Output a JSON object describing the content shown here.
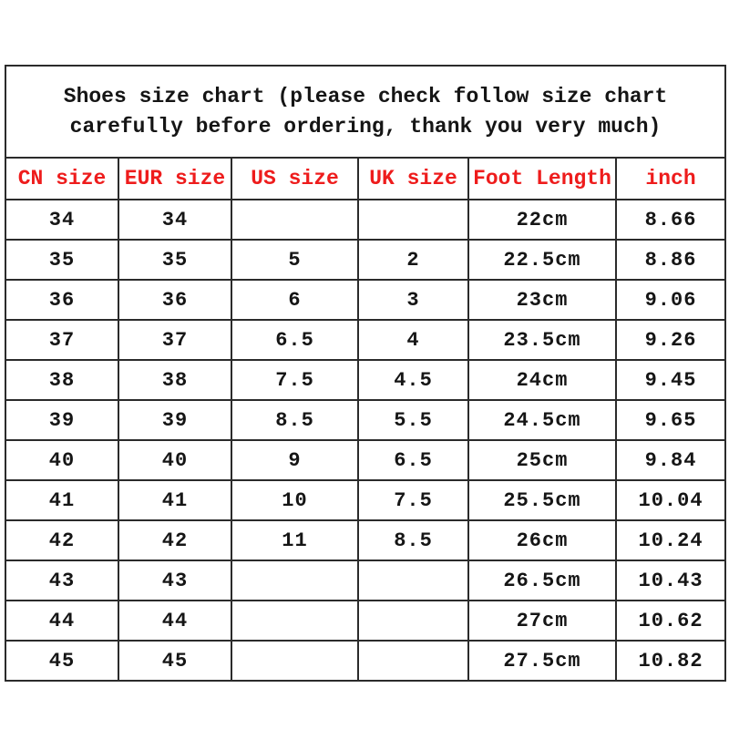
{
  "colors": {
    "header_text_red": "#ee1c1c",
    "body_text": "#151515",
    "grid_border": "#2b2b2b",
    "background": "#ffffff"
  },
  "title": {
    "line1": "Shoes size chart (please check follow size chart",
    "line2": "carefully before ordering, thank you very much)"
  },
  "table": {
    "columns": [
      "CN size",
      "EUR size",
      "US size",
      "UK size",
      "Foot Length",
      "inch"
    ],
    "rows": [
      [
        "34",
        "34",
        "",
        "",
        "22cm",
        "8.66"
      ],
      [
        "35",
        "35",
        "5",
        "2",
        "22.5cm",
        "8.86"
      ],
      [
        "36",
        "36",
        "6",
        "3",
        "23cm",
        "9.06"
      ],
      [
        "37",
        "37",
        "6.5",
        "4",
        "23.5cm",
        "9.26"
      ],
      [
        "38",
        "38",
        "7.5",
        "4.5",
        "24cm",
        "9.45"
      ],
      [
        "39",
        "39",
        "8.5",
        "5.5",
        "24.5cm",
        "9.65"
      ],
      [
        "40",
        "40",
        "9",
        "6.5",
        "25cm",
        "9.84"
      ],
      [
        "41",
        "41",
        "10",
        "7.5",
        "25.5cm",
        "10.04"
      ],
      [
        "42",
        "42",
        "11",
        "8.5",
        "26cm",
        "10.24"
      ],
      [
        "43",
        "43",
        "",
        "",
        "26.5cm",
        "10.43"
      ],
      [
        "44",
        "44",
        "",
        "",
        "27cm",
        "10.62"
      ],
      [
        "45",
        "45",
        "",
        "",
        "27.5cm",
        "10.82"
      ]
    ]
  },
  "chart_data": {
    "type": "table",
    "title": "Shoes size chart (please check follow size chart carefully before ordering, thank you very much)",
    "columns": [
      "CN size",
      "EUR size",
      "US size",
      "UK size",
      "Foot Length",
      "inch"
    ],
    "rows": [
      [
        "34",
        "34",
        null,
        null,
        "22cm",
        8.66
      ],
      [
        "35",
        "35",
        "5",
        "2",
        "22.5cm",
        8.86
      ],
      [
        "36",
        "36",
        "6",
        "3",
        "23cm",
        9.06
      ],
      [
        "37",
        "37",
        "6.5",
        "4",
        "23.5cm",
        9.26
      ],
      [
        "38",
        "38",
        "7.5",
        "4.5",
        "24cm",
        9.45
      ],
      [
        "39",
        "39",
        "8.5",
        "5.5",
        "24.5cm",
        9.65
      ],
      [
        "40",
        "40",
        "9",
        "6.5",
        "25cm",
        9.84
      ],
      [
        "41",
        "41",
        "10",
        "7.5",
        "25.5cm",
        10.04
      ],
      [
        "42",
        "42",
        "11",
        "8.5",
        "26cm",
        10.24
      ],
      [
        "43",
        "43",
        null,
        null,
        "26.5cm",
        10.43
      ],
      [
        "44",
        "44",
        null,
        null,
        "27cm",
        10.62
      ],
      [
        "45",
        "45",
        null,
        null,
        "27.5cm",
        10.82
      ]
    ]
  }
}
